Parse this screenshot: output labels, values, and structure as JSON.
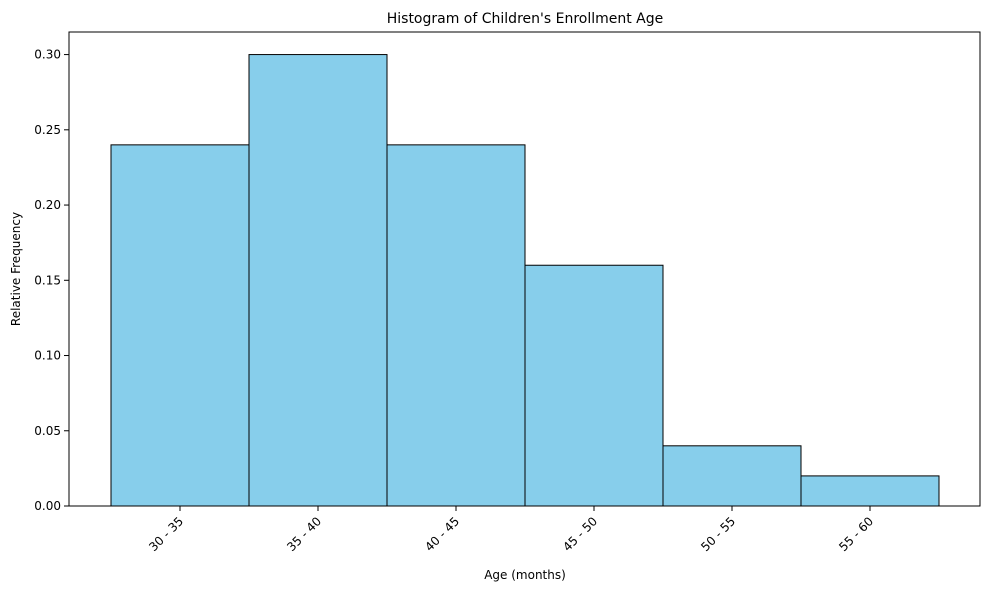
{
  "chart_data": {
    "type": "bar",
    "title": "Histogram of Children's Enrollment Age",
    "xlabel": "Age (months)",
    "ylabel": "Relative Frequency",
    "categories": [
      "30 - 35",
      "35 - 40",
      "40 - 45",
      "45 - 50",
      "50 - 55",
      "55 - 60"
    ],
    "values": [
      0.24,
      0.3,
      0.24,
      0.16,
      0.04,
      0.02
    ],
    "ylim": [
      0,
      0.315
    ],
    "yticks": [
      "0.00",
      "0.05",
      "0.10",
      "0.15",
      "0.20",
      "0.25",
      "0.30"
    ],
    "grid": false,
    "bar_color": "#87CEEB",
    "edge_color": "#000000"
  }
}
